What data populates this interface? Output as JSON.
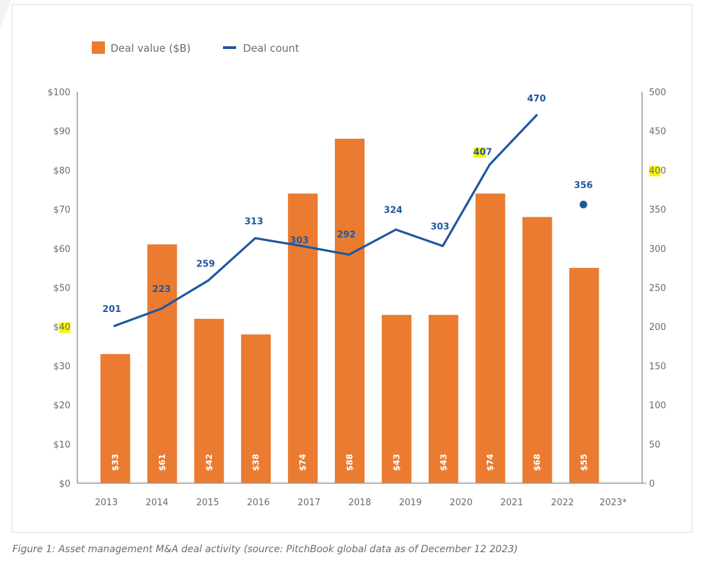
{
  "chart_data": {
    "type": "bar",
    "title": "",
    "xlabel": "",
    "ylabel": "",
    "categories": [
      "2013",
      "2014",
      "2015",
      "2016",
      "2017",
      "2018",
      "2019",
      "2020",
      "2021",
      "2022",
      "2023*"
    ],
    "legend": {
      "placement": "top-left",
      "entries": [
        {
          "name": "Deal value ($B)",
          "kind": "bar",
          "color": "#ea7b30"
        },
        {
          "name": "Deal count",
          "kind": "line",
          "color": "#1f57a0"
        }
      ]
    },
    "series": [
      {
        "name": "Deal value ($B)",
        "type": "bar",
        "axis": "left",
        "color": "#ea7b30",
        "values": [
          33,
          61,
          42,
          38,
          74,
          88,
          43,
          43,
          74,
          68,
          55
        ],
        "labels": [
          "$33",
          "$61",
          "$42",
          "$38",
          "$74",
          "$88",
          "$43",
          "$43",
          "$74",
          "$68",
          "$55"
        ]
      },
      {
        "name": "Deal count",
        "type": "line",
        "axis": "right",
        "color": "#1f57a0",
        "values": [
          201,
          223,
          259,
          313,
          303,
          292,
          324,
          303,
          407,
          470,
          356
        ],
        "labels": [
          "201",
          "223",
          "259",
          "313",
          "303",
          "292",
          "324",
          "303",
          "407",
          "470",
          "356"
        ],
        "last_point_style": "dot"
      }
    ],
    "y_left": {
      "range": [
        0,
        100
      ],
      "ticks": [
        0,
        10,
        20,
        30,
        40,
        50,
        60,
        70,
        80,
        90,
        100
      ],
      "tick_labels": [
        "$0",
        "$10",
        "$20",
        "$30",
        "$40",
        "$50",
        "$60",
        "$70",
        "$80",
        "$90",
        "$100"
      ],
      "highlight_tick": "$40",
      "highlight_chars": "40"
    },
    "y_right": {
      "range": [
        0,
        500
      ],
      "ticks": [
        0,
        50,
        100,
        150,
        200,
        250,
        300,
        350,
        400,
        450,
        500
      ],
      "tick_labels": [
        "0",
        "50",
        "100",
        "150",
        "200",
        "250",
        "300",
        "350",
        "400",
        "450",
        "500"
      ],
      "highlight_tick": "400",
      "highlight_chars": "40"
    },
    "annotations": [
      {
        "label": "407",
        "highlight_chars": "40"
      }
    ],
    "grid": false
  },
  "caption": "Figure 1: Asset management M&A deal activity (source: PitchBook global data as of December 12 2023)",
  "colors": {
    "bar": "#ea7b30",
    "line": "#1f57a0",
    "axis": "#9a9a9a",
    "text": "#6b6b6b",
    "highlight": "#f7f700"
  }
}
